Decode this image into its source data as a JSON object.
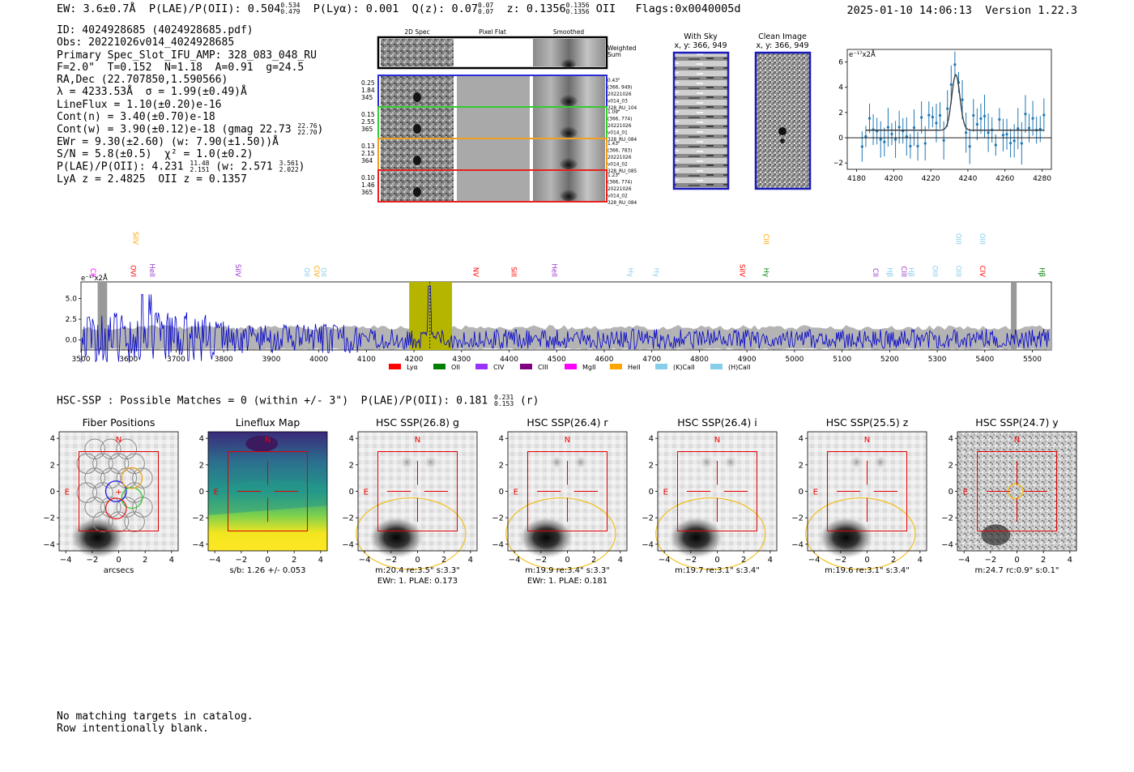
{
  "header": {
    "ew": "EW: 3.6±0.7Å",
    "plae_label": "P(LAE)/P(OII): 0.504",
    "plae_hi": "0.534",
    "plae_lo": "0.479",
    "plya": "P(Lyα): 0.001",
    "q_label": "Q(z): 0.07",
    "q_hi": "0.07",
    "q_lo": "0.07",
    "z_label": "z: 0.1356",
    "z_hi": "0.1356",
    "z_lo": "0.1356",
    "z_line": "OII",
    "flags": "Flags:0x0040005d",
    "datetime": "2025-01-10 14:06:13",
    "version": "Version 1.22.3"
  },
  "info": {
    "id": "ID: 4024928685 (4024928685.pdf)",
    "obs": "Obs: 20221026v014_4024928685",
    "primary": "Primary Spec_Slot_IFU_AMP: 328_083_048_RU",
    "params": "F=2.0\"  T=0.152  N=1.18  A=0.91  g=24.5",
    "radec": "RA,Dec (22.707850,1.590566)",
    "lambda": "λ = 4233.53Å  σ = 1.99(±0.49)Å",
    "lineflux": "LineFlux = 1.10(±0.20)e-16",
    "contn": "Cont(n) = 3.40(±0.70)e-18",
    "contw": "Cont(w) = 3.90(±0.12)e-18 (gmag 22.73",
    "contw_hi": "22.76",
    "contw_lo": "22.70",
    "ewr": "EWr = 9.30(±2.60) (w: 7.90(±1.50))Å",
    "sn": "S/N = 5.8(±0.5)  χ² = 1.0(±0.2)",
    "plae": "P(LAE)/P(OII): 4.231",
    "plae_hi": "11.48",
    "plae_lo": "2.151",
    "plae_w": "(w: 2.571",
    "plae_w_hi": "3.561",
    "plae_w_lo": "2.022",
    "lyaz": "LyA z = 2.4825  OII z = 0.1357"
  },
  "cutouts": {
    "col_2d": "2D Spec",
    "col_flat": "Pixel Flat",
    "col_smooth": "Smoothed",
    "weighted": [
      "Weighted",
      "Sum"
    ],
    "rows": [
      {
        "left": [
          "0.25",
          "1.84",
          "345"
        ],
        "right": [
          "0.43\"",
          "(366, 949)",
          "20221026",
          "v014_03",
          "328_RU_104"
        ],
        "color": "#2b2bd6"
      },
      {
        "left": [
          "0.15",
          "2.55",
          "365"
        ],
        "right": [
          "1.09\"",
          "(366, 774)",
          "20221026",
          "v014_01",
          "328_RU_084"
        ],
        "color": "#33cc33"
      },
      {
        "left": [
          "0.13",
          "2.15",
          "364"
        ],
        "right": [
          "1.43\"",
          "(366, 783)",
          "20221026",
          "v014_02",
          "328_RU_085"
        ],
        "color": "#f0a020"
      },
      {
        "left": [
          "0.10",
          "1.46",
          "365"
        ],
        "right": [
          "1.23\"",
          "(366, 774)",
          "20221026",
          "v014_02",
          "328_RU_084"
        ],
        "color": "#e82020"
      }
    ]
  },
  "sky": {
    "title": "With Sky",
    "coords": "x, y: 366, 949"
  },
  "clean": {
    "title": "Clean Image",
    "coords": "x, y: 366, 949"
  },
  "line_fit": {
    "unit": "e⁻¹⁷x2Å",
    "x_ticks": [
      "4180",
      "4200",
      "4220",
      "4240",
      "4260",
      "4280"
    ],
    "y_ticks": [
      "6",
      "4",
      "2",
      "0",
      "−2"
    ],
    "peak_wavelength": 4233.5,
    "peak_value": 5.0,
    "baseline": 0.6
  },
  "spectrum": {
    "unit": "e⁻¹⁷x2Å",
    "y_ticks": [
      "5.0",
      "2.5",
      "0.0"
    ],
    "x_ticks": [
      "3500",
      "3600",
      "3700",
      "3800",
      "3900",
      "4000",
      "4100",
      "4200",
      "4300",
      "4400",
      "4500",
      "4600",
      "4700",
      "4800",
      "4900",
      "5000",
      "5100",
      "5200",
      "5300",
      "5400",
      "5500"
    ],
    "line_labels": [
      {
        "t": "CII",
        "w": 3515,
        "c": "#ff00ff",
        "row": "low"
      },
      {
        "t": "SiIV",
        "w": 3605,
        "c": "#ffa500",
        "row": "high"
      },
      {
        "t": "OVI",
        "w": 3600,
        "c": "#ff0000",
        "row": "low"
      },
      {
        "t": "HeII",
        "w": 3640,
        "c": "#9932cc",
        "row": "low"
      },
      {
        "t": "SiIV",
        "w": 3820,
        "c": "#9932cc",
        "row": "low"
      },
      {
        "t": "OII",
        "w": 3965,
        "c": "#87ceeb",
        "row": "low"
      },
      {
        "t": "CIV",
        "w": 3985,
        "c": "#ffa500",
        "row": "low"
      },
      {
        "t": "OII",
        "w": 4000,
        "c": "#87ceeb",
        "row": "low"
      },
      {
        "t": "NV",
        "w": 4320,
        "c": "#ff0000",
        "row": "low"
      },
      {
        "t": "SiII",
        "w": 4400,
        "c": "#ff0000",
        "row": "low"
      },
      {
        "t": "HeII",
        "w": 4485,
        "c": "#9932cc",
        "row": "low"
      },
      {
        "t": "Hγ",
        "w": 4645,
        "c": "#87ceeb",
        "row": "low"
      },
      {
        "t": "Hγ",
        "w": 4700,
        "c": "#87ceeb",
        "row": "low"
      },
      {
        "t": "SiIV",
        "w": 4880,
        "c": "#ff0000",
        "row": "low"
      },
      {
        "t": "CIII",
        "w": 4930,
        "c": "#ffa500",
        "row": "high"
      },
      {
        "t": "Hγ",
        "w": 4930,
        "c": "#008000",
        "row": "low"
      },
      {
        "t": "CII",
        "w": 5160,
        "c": "#9932cc",
        "row": "low"
      },
      {
        "t": "Hβ",
        "w": 5190,
        "c": "#87ceeb",
        "row": "low"
      },
      {
        "t": "CIII",
        "w": 5220,
        "c": "#9932cc",
        "row": "low"
      },
      {
        "t": "Hβ",
        "w": 5235,
        "c": "#87ceeb",
        "row": "low"
      },
      {
        "t": "OIII",
        "w": 5285,
        "c": "#87ceeb",
        "row": "low"
      },
      {
        "t": "OIII",
        "w": 5335,
        "c": "#87ceeb",
        "row": "high"
      },
      {
        "t": "OIII",
        "w": 5335,
        "c": "#87ceeb",
        "row": "low"
      },
      {
        "t": "OIII",
        "w": 5385,
        "c": "#87ceeb",
        "row": "high"
      },
      {
        "t": "CIV",
        "w": 5385,
        "c": "#ff0000",
        "row": "low"
      },
      {
        "t": "Hβ",
        "w": 5510,
        "c": "#008000",
        "row": "low"
      }
    ],
    "highlight_wavelength": 4233.5,
    "highlight_range": [
      4190,
      4280
    ],
    "legend": [
      {
        "label": "Lyα",
        "color": "#ff0000"
      },
      {
        "label": "OII",
        "color": "#008000"
      },
      {
        "label": "CIV",
        "color": "#9932ff"
      },
      {
        "label": "CIII",
        "color": "#800080"
      },
      {
        "label": "MgII",
        "color": "#ff00ff"
      },
      {
        "label": "HeII",
        "color": "#ffa500"
      },
      {
        "label": "(K)CaII",
        "color": "#87ceeb"
      },
      {
        "label": "(H)CaII",
        "color": "#87ceeb"
      }
    ]
  },
  "hsc": {
    "title": "HSC-SSP : Possible Matches = 0 (within +/- 3\")  P(LAE)/P(OII): 0.181",
    "plae_hi": "0.231",
    "plae_lo": "0.153",
    "band": "(r)",
    "axis_ticks": [
      "−4",
      "−2",
      "0",
      "2",
      "4"
    ],
    "y_ticks": [
      "4",
      "2",
      "0",
      "−2",
      "−4"
    ],
    "north": "N",
    "east": "E",
    "panels": [
      {
        "title": "Fiber Positions",
        "cap1": "arcsecs",
        "cap2": "",
        "kind": "fiber"
      },
      {
        "title": "Lineflux Map",
        "cap1": "s/b: 1.26 +/- 0.053",
        "cap2": "",
        "kind": "flux"
      },
      {
        "title": "HSC SSP(26.8) g",
        "cap1": "m:20.4  re:3.5\"  s:3.3\"",
        "cap2": "EWr: 1. PLAE: 0.173",
        "kind": "img"
      },
      {
        "title": "HSC SSP(26.4) r",
        "cap1": "m:19.9  re:3.4\"  s:3.3\"",
        "cap2": "EWr: 1. PLAE: 0.181",
        "kind": "img"
      },
      {
        "title": "HSC SSP(26.4) i",
        "cap1": "m:19.7  re:3.1\"  s:3.4\"",
        "cap2": "",
        "kind": "img"
      },
      {
        "title": "HSC SSP(25.5) z",
        "cap1": "m:19.6  re:3.1\"  s:3.4\"",
        "cap2": "",
        "kind": "img"
      },
      {
        "title": "HSC SSP(24.7) y",
        "cap1": "m:24.7  rc:0.9\"  s:0.1\"",
        "cap2": "",
        "kind": "noisy"
      }
    ]
  },
  "footer": {
    "line1": "No matching targets in catalog.",
    "line2": "Row intentionally blank."
  },
  "colors": {
    "blue": "#0000cc",
    "grey_band": "#b4b4b4",
    "highlight": "#b5b500",
    "fit_point": "#1f77b4",
    "box_red": "#e00000",
    "ellipse": "#f0c020"
  }
}
